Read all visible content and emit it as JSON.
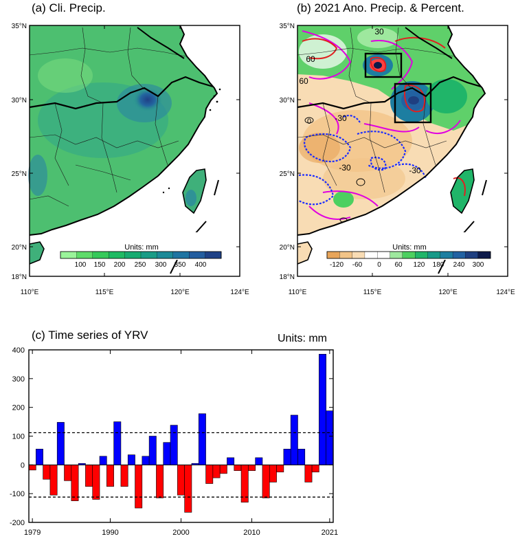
{
  "panel_a": {
    "title": "(a) Cli. Precip.",
    "lat_ticks": [
      "35°N",
      "30°N",
      "25°N",
      "20°N",
      "18°N"
    ],
    "lon_ticks": [
      "110°E",
      "115°E",
      "120°E",
      "124°E"
    ],
    "legend_title": "Units: mm",
    "legend_labels": [
      "100",
      "150",
      "200",
      "250",
      "300",
      "350",
      "400"
    ],
    "legend_colors": [
      "#9af39a",
      "#5fdc6a",
      "#36c95a",
      "#1fba63",
      "#17ab70",
      "#1a9c86",
      "#1d8a98",
      "#1f74a2",
      "#235d9f",
      "#1f4186"
    ]
  },
  "panel_b": {
    "title": "(b) 2021 Ano. Precip. & Percent.",
    "lat_ticks": [
      "35°N",
      "30°N",
      "25°N",
      "20°N",
      "18°N"
    ],
    "lon_ticks": [
      "110°E",
      "115°E",
      "120°E",
      "124°E"
    ],
    "legend_title": "Units: mm",
    "legend_labels": [
      "-120",
      "-60",
      "0",
      "60",
      "120",
      "180",
      "240",
      "300"
    ],
    "legend_colors": [
      "#e8a55a",
      "#f2c488",
      "#f8dcb4",
      "#ffffff",
      "#ffffff",
      "#9ee89e",
      "#4cd060",
      "#20b569",
      "#189a88",
      "#1d7ea1",
      "#2262a2",
      "#1f3f80",
      "#0d1a4a"
    ],
    "contour_labels": [
      "-30",
      "-30",
      "-30",
      "30",
      "60",
      "60",
      "-30",
      "0"
    ]
  },
  "chart_data": {
    "type": "bar",
    "title": "(c) Time series of YRV",
    "units_label": "Units: mm",
    "x": [
      1979,
      1980,
      1981,
      1982,
      1983,
      1984,
      1985,
      1986,
      1987,
      1988,
      1989,
      1990,
      1991,
      1992,
      1993,
      1994,
      1995,
      1996,
      1997,
      1998,
      1999,
      2000,
      2001,
      2002,
      2003,
      2004,
      2005,
      2006,
      2007,
      2008,
      2009,
      2010,
      2011,
      2012,
      2013,
      2014,
      2015,
      2016,
      2017,
      2018,
      2019,
      2020,
      2021
    ],
    "values": [
      -18,
      55,
      -50,
      -105,
      148,
      -55,
      -125,
      5,
      -75,
      -120,
      30,
      -75,
      150,
      -75,
      35,
      -150,
      30,
      100,
      -115,
      78,
      138,
      -105,
      -165,
      5,
      178,
      -65,
      -45,
      -30,
      25,
      -20,
      -130,
      -20,
      25,
      -115,
      -60,
      -25,
      55,
      173,
      55,
      -60,
      -25,
      385,
      188
    ],
    "positive_color": "#0000ff",
    "negative_color": "#ff0000",
    "threshold_lines": [
      112,
      -112
    ],
    "x_ticks": [
      1979,
      1990,
      2000,
      2010,
      2021
    ],
    "y_ticks": [
      -200,
      -100,
      0,
      100,
      200,
      300,
      400
    ],
    "ylim": [
      -200,
      400
    ],
    "xlabel": "",
    "ylabel": ""
  }
}
